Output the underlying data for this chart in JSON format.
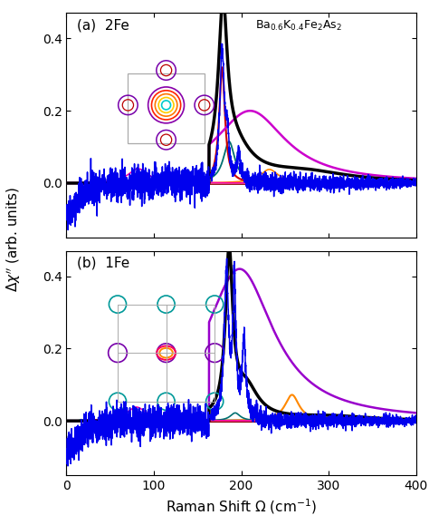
{
  "title_a": "(a)  2Fe",
  "title_b": "(b)  1Fe",
  "xlim": [
    0,
    400
  ],
  "ylim": [
    -0.15,
    0.47
  ],
  "yticks": [
    0.0,
    0.2,
    0.4
  ],
  "xticks": [
    0,
    100,
    200,
    300,
    400
  ],
  "colors_a": {
    "blue": "#0000ee",
    "purple": "#cc00cc",
    "black": "#000000",
    "red": "#cc0000",
    "teal": "#007070",
    "orange": "#ff8800",
    "magenta": "#ff00aa",
    "dark_red": "#880000"
  },
  "colors_b": {
    "blue": "#0000ee",
    "purple": "#9900cc",
    "black": "#000000",
    "teal": "#007070",
    "orange": "#ff8800",
    "magenta": "#ff00aa",
    "cyan": "#00aaaa",
    "dark_red": "#880000"
  }
}
